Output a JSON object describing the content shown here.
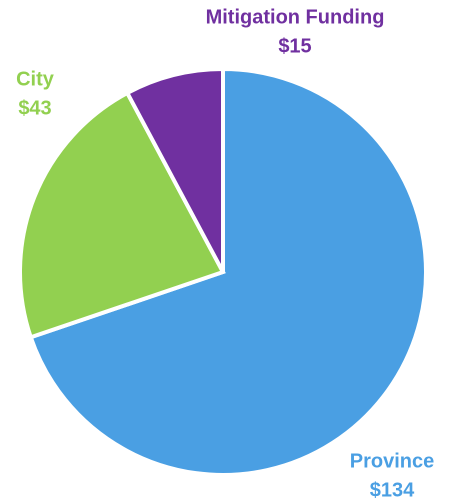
{
  "chart_data": {
    "type": "pie",
    "categories": [
      "Province",
      "City",
      "Mitigation Funding"
    ],
    "values": [
      134,
      43,
      15
    ],
    "value_labels": [
      "$134",
      "$43",
      "$15"
    ],
    "colors": [
      "#4a9fe3",
      "#92d050",
      "#7030a0"
    ]
  }
}
